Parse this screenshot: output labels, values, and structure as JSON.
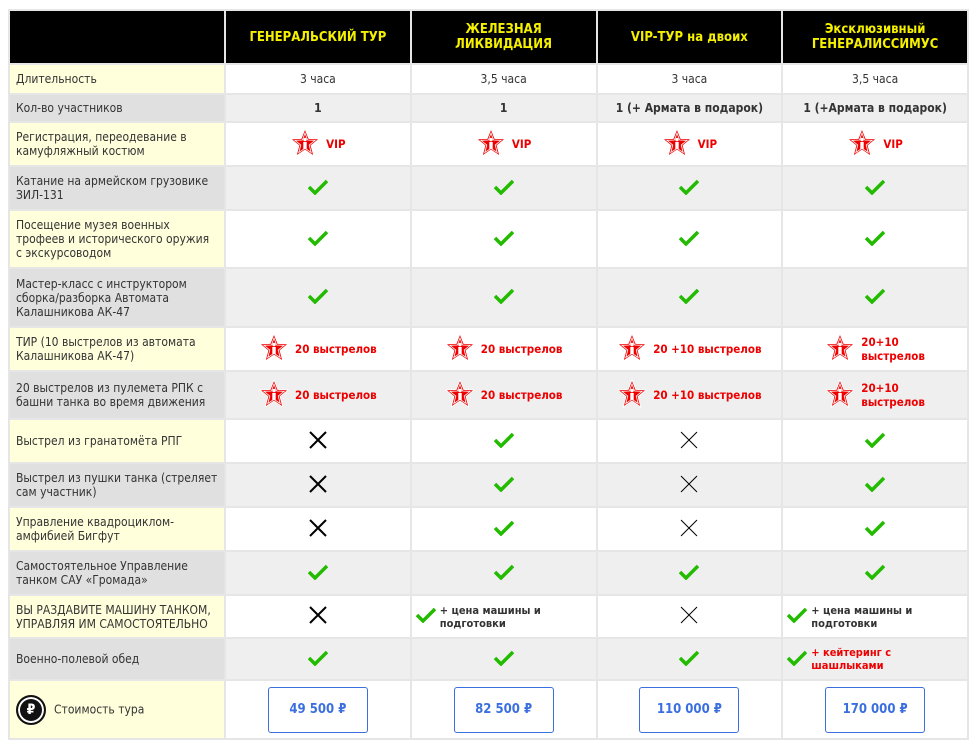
{
  "colors": {
    "header_bg": "#000000",
    "header_text": "#f5f000",
    "accent_red": "#ee0000",
    "check_green": "#22bb00",
    "price_blue": "#3b6fe0",
    "label_bg": "#ffffdc",
    "label_alt_bg": "#e0e0e0"
  },
  "headers": [
    "ГЕНЕРАЛЬСКИЙ ТУР",
    "ЖЕЛЕЗНАЯ ЛИКВИДАЦИЯ",
    "VIP-ТУР на двоих",
    "Эксклюзивный ГЕНЕРАЛИССИМУС"
  ],
  "rows": [
    {
      "label": "Длительность",
      "h": 28,
      "cells": [
        {
          "t": "text",
          "v": "3 часа"
        },
        {
          "t": "text",
          "v": "3,5 часа"
        },
        {
          "t": "text",
          "v": "3 часа"
        },
        {
          "t": "text",
          "v": "3,5 часа"
        }
      ]
    },
    {
      "label": "Кол-во участников",
      "h": 26,
      "cells": [
        {
          "t": "bold",
          "v": "1"
        },
        {
          "t": "bold",
          "v": "1"
        },
        {
          "t": "bold",
          "v": "1 (+ Армата в подарок)"
        },
        {
          "t": "bold",
          "v": "1 (+Армата в подарок)"
        }
      ]
    },
    {
      "label": "Регистрация, переодевание в камуфляжный костюм",
      "h": 42,
      "cells": [
        {
          "t": "star",
          "v": "VIP"
        },
        {
          "t": "star",
          "v": "VIP"
        },
        {
          "t": "star",
          "v": "VIP"
        },
        {
          "t": "star",
          "v": "VIP"
        }
      ]
    },
    {
      "label": "Катание на армейском грузовике ЗИЛ-131",
      "h": 42,
      "cells": [
        {
          "t": "check"
        },
        {
          "t": "check"
        },
        {
          "t": "check"
        },
        {
          "t": "check"
        }
      ]
    },
    {
      "label": "Посещение музея военных трофеев и исторического оружия с экскурсоводом",
      "h": 56,
      "cells": [
        {
          "t": "check"
        },
        {
          "t": "check"
        },
        {
          "t": "check"
        },
        {
          "t": "check"
        }
      ]
    },
    {
      "label": "Мастер-класс с инструктором сборка/разборка Автомата Калашникова АК-47",
      "h": 57,
      "cells": [
        {
          "t": "check"
        },
        {
          "t": "check"
        },
        {
          "t": "check"
        },
        {
          "t": "check"
        }
      ]
    },
    {
      "label": "ТИР (10 выстрелов из автомата Калашникова АК-47)",
      "h": 42,
      "cells": [
        {
          "t": "star",
          "v": "20 выстрелов"
        },
        {
          "t": "star",
          "v": "20 выстрелов"
        },
        {
          "t": "star",
          "v": "20 +10 выстрелов"
        },
        {
          "t": "star",
          "v": "20+10\nвыстрелов"
        }
      ]
    },
    {
      "label": "20 выстрелов из пулемета РПК с башни танка во время движения",
      "h": 46,
      "cells": [
        {
          "t": "star",
          "v": "20 выстрелов"
        },
        {
          "t": "star",
          "v": "20 выстрелов"
        },
        {
          "t": "star",
          "v": "20 +10 выстрелов"
        },
        {
          "t": "star",
          "v": "20+10\n выстрелов"
        }
      ]
    },
    {
      "label": "Выстрел из гранатомёта РПГ",
      "h": 42,
      "cells": [
        {
          "t": "cross"
        },
        {
          "t": "check"
        },
        {
          "t": "xthin"
        },
        {
          "t": "check"
        }
      ]
    },
    {
      "label": "Выстрел из пушки танка (стреляет сам участник)",
      "h": 42,
      "cells": [
        {
          "t": "cross"
        },
        {
          "t": "check"
        },
        {
          "t": "xthin"
        },
        {
          "t": "check"
        }
      ]
    },
    {
      "label": "Управление квадроциклом-амфибией Бигфут",
      "h": 42,
      "cells": [
        {
          "t": "cross"
        },
        {
          "t": "check"
        },
        {
          "t": "xthin"
        },
        {
          "t": "check"
        }
      ]
    },
    {
      "label": "Самостоятельное Управление танком САУ «Громада»",
      "h": 42,
      "cells": [
        {
          "t": "check"
        },
        {
          "t": "check"
        },
        {
          "t": "check"
        },
        {
          "t": "check"
        }
      ]
    },
    {
      "label": "ВЫ РАЗДАВИТЕ МАШИНУ ТАНКОМ, УПРАВЛЯЯ ИМ САМОСТОЯТЕЛЬНО",
      "h": 41,
      "cells": [
        {
          "t": "cross"
        },
        {
          "t": "checknote",
          "v": "+ цена машины и\nподготовки"
        },
        {
          "t": "xthin"
        },
        {
          "t": "checknote",
          "v": "+ цена машины и\nподготовки"
        }
      ]
    },
    {
      "label": "Военно-полевой обед",
      "h": 40,
      "cells": [
        {
          "t": "check"
        },
        {
          "t": "check"
        },
        {
          "t": "check"
        },
        {
          "t": "checknotered",
          "v": " + кейтеринг с\nшашлыками"
        }
      ]
    }
  ],
  "price_row": {
    "label": "Стоимость тура",
    "icon": "ruble-coin-icon",
    "prices": [
      "49 500 ₽",
      "82 500 ₽",
      "110 000 ₽",
      "170 000 ₽"
    ]
  }
}
